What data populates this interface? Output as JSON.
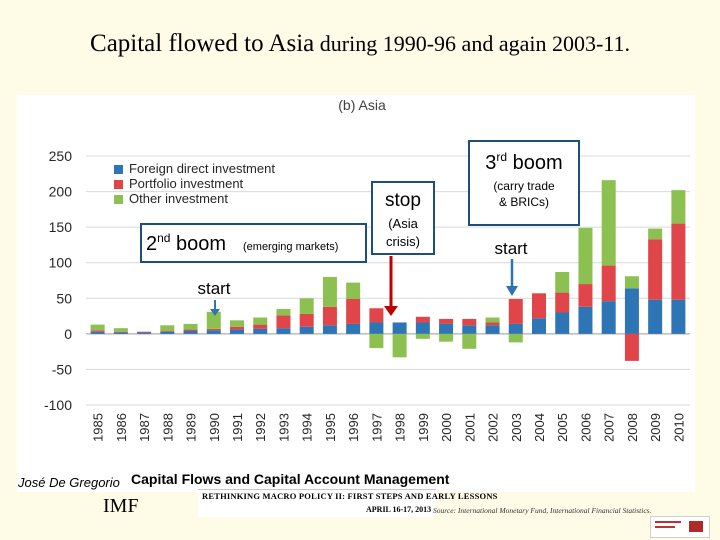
{
  "slide": {
    "title_main": "Capital flowed to Asia",
    "title_rest": " during 1990-96 and again 2003-11."
  },
  "footer": {
    "author": "José De Gregorio",
    "book_title": "Capital Flows and Capital Account Management",
    "conference_line1": "RETHINKING MACRO POLICY II: FIRST STEPS AND EARLY LESSONS",
    "conference_line2": "APRIL 16-17, 2013",
    "imf": "IMF",
    "source": "Source: International Monetary Fund, International Financial Statistics."
  },
  "colors": {
    "fdi": "#2e75b6",
    "portfolio": "#e0454a",
    "other": "#8cc152",
    "annotation_box": "#1f4e79",
    "arrow": "#2e74b5",
    "stop_arrow": "#c00000"
  },
  "annotations": {
    "boom2_main": "2",
    "boom2_sup": "nd",
    "boom2_word": " boom",
    "boom2_small": "(emerging  markets)",
    "boom2_start": "start",
    "stop_title": "stop",
    "stop_line1": "(Asia",
    "stop_line2": "crisis)",
    "boom3_main": "3",
    "boom3_sup": "rd",
    "boom3_word": " boom",
    "boom3_line1": "(carry trade",
    "boom3_line2": "& BRICs)",
    "boom3_start": "start"
  },
  "chart_data": {
    "type": "bar",
    "stacked": true,
    "title": "(b) Asia",
    "categories": [
      "1985",
      "1986",
      "1987",
      "1988",
      "1989",
      "1990",
      "1991",
      "1992",
      "1993",
      "1994",
      "1995",
      "1996",
      "1997",
      "1998",
      "1999",
      "2000",
      "2001",
      "2002",
      "2003",
      "2004",
      "2005",
      "2006",
      "2007",
      "2008",
      "2009",
      "2010"
    ],
    "series": [
      {
        "name": "Foreign direct investment",
        "color": "#2e75b6",
        "values": [
          3,
          2,
          2,
          3,
          4,
          5,
          6,
          7,
          8,
          10,
          12,
          14,
          16,
          16,
          16,
          14,
          12,
          12,
          14,
          22,
          30,
          38,
          46,
          64,
          48,
          48
        ]
      },
      {
        "name": "Portfolio investment",
        "color": "#e0454a",
        "values": [
          2,
          1,
          1,
          1,
          2,
          2,
          4,
          6,
          18,
          18,
          26,
          35,
          20,
          0,
          8,
          7,
          9,
          4,
          35,
          35,
          28,
          32,
          50,
          -38,
          85,
          107
        ]
      },
      {
        "name": "Other investment",
        "color": "#8cc152",
        "values": [
          8,
          5,
          0,
          8,
          8,
          24,
          9,
          10,
          9,
          22,
          42,
          23,
          -20,
          -33,
          -7,
          -11,
          -21,
          7,
          -12,
          0,
          29,
          79,
          120,
          17,
          15,
          47
        ]
      }
    ],
    "ylim": [
      -100,
      250
    ],
    "yticks": [
      -100,
      -50,
      0,
      50,
      100,
      150,
      200,
      250
    ],
    "grid": true,
    "legend": "top-left"
  }
}
